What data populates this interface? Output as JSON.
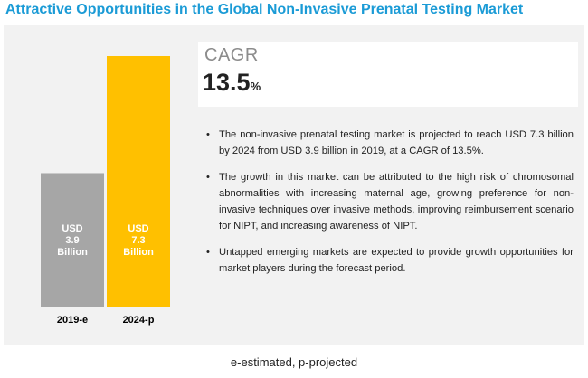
{
  "title": "Attractive Opportunities in the Global Non-Invasive Prenatal Testing Market",
  "cagr": {
    "label": "CAGR",
    "value": "13.5",
    "unit": "%"
  },
  "bullets": [
    "The non-invasive prenatal testing market is projected to reach USD 7.3 billion by 2024 from USD 3.9 billion in 2019, at a CAGR of 13.5%.",
    "The growth in this market can be attributed to the high risk of chromosomal abnormalities with increasing maternal age, growing preference for non-invasive techniques over invasive methods, improving reimbursement scenario for NIPT, and increasing awareness of NIPT.",
    "Untapped emerging markets are expected to provide growth opportunities for market players during the forecast period."
  ],
  "bullet_symbol": "•",
  "footnote": "e-estimated, p-projected",
  "colors": {
    "title": "#1b9bd6",
    "panel_bg": "#f2f2f2",
    "bar_2019": "#a6a6a6",
    "bar_2024": "#ffc000"
  },
  "chart_data": {
    "type": "bar",
    "categories": [
      "2019-e",
      "2024-p"
    ],
    "values": [
      3.9,
      7.3
    ],
    "value_labels": [
      [
        "USD",
        "3.9",
        "Billion"
      ],
      [
        "USD",
        "7.3",
        "Billion"
      ]
    ],
    "ylim": [
      0,
      7.3
    ],
    "grid": false,
    "legend": "none"
  }
}
